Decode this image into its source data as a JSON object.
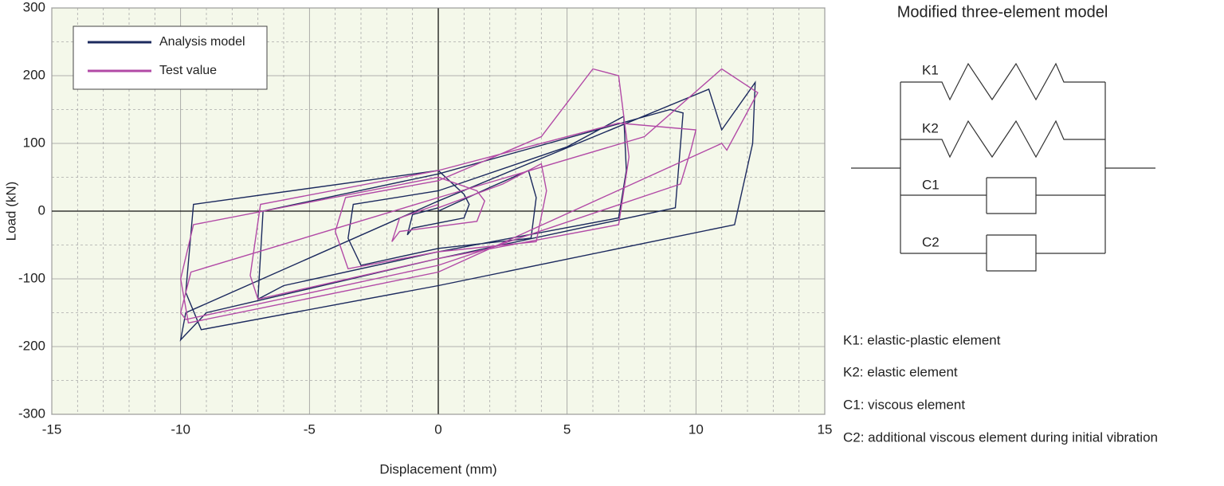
{
  "chart_data": {
    "type": "line",
    "xlabel": "Displacement (mm)",
    "ylabel": "Load (kN)",
    "xlim": [
      -15,
      15
    ],
    "xticks": [
      -15,
      -10,
      -5,
      0,
      5,
      10,
      15
    ],
    "ylim": [
      -300,
      300
    ],
    "yticks": [
      -300,
      -200,
      -100,
      0,
      100,
      200,
      300
    ],
    "xminorticks": [
      -14,
      -13,
      -12,
      -11,
      -9,
      -8,
      -7,
      -6,
      -4,
      -3,
      -2,
      -1,
      1,
      2,
      3,
      4,
      6,
      7,
      8,
      9,
      11,
      12,
      13,
      14
    ],
    "yminorticks": [
      -250,
      -150,
      -50,
      50,
      150,
      250
    ],
    "grid": true,
    "legend": "upper left",
    "series": [
      {
        "name": "Analysis model",
        "color": "#1c2a5e",
        "x": [
          0,
          2,
          3.5,
          3.8,
          3.6,
          0,
          -3,
          -3.5,
          -3.3,
          0,
          5,
          7.2,
          7.3,
          7,
          0,
          -6,
          -7,
          -6.8,
          0,
          9,
          9.5,
          9.2,
          0,
          -9,
          -10,
          -9.8,
          0,
          10.5,
          11,
          12.3,
          12.2,
          11.5,
          0,
          -9.2,
          -9.8,
          -9.5,
          0,
          1,
          1.2,
          1,
          -1,
          -1.2,
          -1,
          0
        ],
        "values": [
          0,
          35,
          60,
          20,
          -40,
          -55,
          -80,
          -40,
          10,
          30,
          95,
          140,
          60,
          -10,
          -60,
          -110,
          -130,
          0,
          55,
          150,
          145,
          5,
          -70,
          -150,
          -190,
          -150,
          15,
          180,
          120,
          190,
          100,
          -20,
          -110,
          -175,
          -120,
          10,
          60,
          25,
          10,
          -10,
          -25,
          -35,
          -5,
          5
        ]
      },
      {
        "name": "Test value",
        "color": "#b24aa6",
        "x": [
          0,
          2.5,
          4,
          4.2,
          3.8,
          0,
          -3.5,
          -4,
          -3.6,
          0,
          4,
          6,
          7,
          7.4,
          7,
          0,
          -7,
          -7.3,
          -6.9,
          0,
          7,
          10,
          9.8,
          9.4,
          0,
          -9.8,
          -10,
          -9.6,
          0,
          8,
          11,
          12.4,
          11.2,
          11,
          0,
          -9.7,
          -10,
          -9.5,
          0,
          1.5,
          1.8,
          1.5,
          -1.5,
          -1.8,
          -1.5,
          0
        ],
        "values": [
          5,
          40,
          70,
          30,
          -45,
          -60,
          -85,
          -30,
          20,
          45,
          110,
          210,
          200,
          80,
          -20,
          -70,
          -130,
          -95,
          10,
          60,
          130,
          120,
          90,
          40,
          -80,
          -160,
          -150,
          -90,
          20,
          110,
          210,
          175,
          90,
          100,
          -90,
          -165,
          -100,
          -20,
          50,
          30,
          15,
          -15,
          -30,
          -45,
          -10,
          10
        ]
      }
    ]
  },
  "diagram": {
    "title": "Modified three-element model",
    "labels": [
      "K1",
      "K2",
      "C1",
      "C2"
    ],
    "descriptions": [
      "K1: elastic-plastic element",
      "K2: elastic element",
      "C1: viscous element",
      "C2: additional viscous element during initial vibration"
    ]
  }
}
